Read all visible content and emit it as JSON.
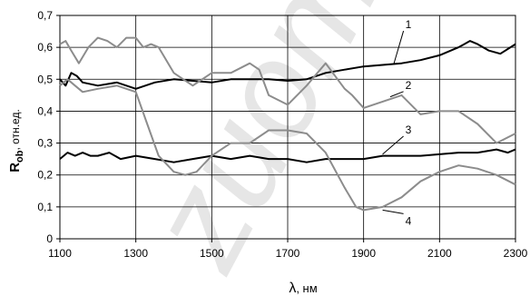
{
  "chart_data": {
    "type": "line",
    "xlabel": "λ",
    "xunit": ", нм",
    "ylabel_main": "R",
    "ylabel_sub": "ob",
    "ylabel_unit": ", отн.ед.",
    "xlim": [
      1100,
      2300
    ],
    "ylim": [
      0,
      0.7
    ],
    "xticks": [
      1100,
      1300,
      1500,
      1700,
      1900,
      2100,
      2300
    ],
    "xtick_labels": [
      "1100",
      "1300",
      "1500",
      "1700",
      "1900",
      "2100",
      "2300"
    ],
    "yticks": [
      0,
      0.1,
      0.2,
      0.3,
      0.4,
      0.5,
      0.6,
      0.7
    ],
    "ytick_labels": [
      "0",
      "0,1",
      "0,2",
      "0,3",
      "0,4",
      "0,5",
      "0,6",
      "0,7"
    ],
    "grid": true,
    "watermark": "zuome",
    "series": [
      {
        "name": "1",
        "color": "#000000",
        "x": [
          1100,
          1115,
          1130,
          1145,
          1160,
          1200,
          1250,
          1300,
          1350,
          1400,
          1450,
          1500,
          1550,
          1600,
          1650,
          1700,
          1750,
          1800,
          1850,
          1900,
          1950,
          2000,
          2050,
          2100,
          2150,
          2180,
          2200,
          2230,
          2260,
          2300
        ],
        "values": [
          0.5,
          0.48,
          0.52,
          0.51,
          0.49,
          0.48,
          0.49,
          0.47,
          0.49,
          0.5,
          0.495,
          0.49,
          0.5,
          0.5,
          0.5,
          0.495,
          0.5,
          0.52,
          0.53,
          0.54,
          0.545,
          0.55,
          0.56,
          0.575,
          0.6,
          0.62,
          0.61,
          0.59,
          0.58,
          0.61
        ]
      },
      {
        "name": "2",
        "color": "#8c8c8c",
        "x": [
          1100,
          1115,
          1130,
          1150,
          1175,
          1200,
          1225,
          1250,
          1275,
          1300,
          1320,
          1340,
          1360,
          1400,
          1450,
          1500,
          1550,
          1600,
          1625,
          1650,
          1700,
          1750,
          1800,
          1850,
          1870,
          1900,
          1950,
          2000,
          2050,
          2100,
          2150,
          2200,
          2250,
          2300
        ],
        "values": [
          0.61,
          0.62,
          0.59,
          0.55,
          0.6,
          0.63,
          0.62,
          0.6,
          0.63,
          0.63,
          0.6,
          0.61,
          0.6,
          0.52,
          0.48,
          0.52,
          0.52,
          0.55,
          0.53,
          0.45,
          0.42,
          0.48,
          0.55,
          0.47,
          0.45,
          0.41,
          0.43,
          0.45,
          0.39,
          0.4,
          0.4,
          0.36,
          0.3,
          0.33
        ]
      },
      {
        "name": "3",
        "color": "#000000",
        "x": [
          1100,
          1120,
          1140,
          1160,
          1180,
          1200,
          1230,
          1260,
          1300,
          1350,
          1400,
          1450,
          1500,
          1550,
          1600,
          1650,
          1700,
          1750,
          1800,
          1850,
          1900,
          1950,
          2000,
          2050,
          2100,
          2150,
          2200,
          2250,
          2280,
          2300
        ],
        "values": [
          0.25,
          0.27,
          0.26,
          0.27,
          0.26,
          0.26,
          0.27,
          0.25,
          0.26,
          0.25,
          0.24,
          0.25,
          0.26,
          0.25,
          0.26,
          0.25,
          0.25,
          0.24,
          0.25,
          0.25,
          0.25,
          0.26,
          0.26,
          0.26,
          0.265,
          0.27,
          0.27,
          0.28,
          0.27,
          0.28
        ]
      },
      {
        "name": "4",
        "color": "#8c8c8c",
        "x": [
          1100,
          1120,
          1140,
          1160,
          1200,
          1250,
          1300,
          1330,
          1360,
          1400,
          1430,
          1460,
          1500,
          1550,
          1600,
          1650,
          1700,
          1750,
          1800,
          1850,
          1880,
          1900,
          1950,
          2000,
          2050,
          2100,
          2150,
          2200,
          2250,
          2300
        ],
        "values": [
          0.48,
          0.5,
          0.48,
          0.46,
          0.47,
          0.48,
          0.46,
          0.36,
          0.26,
          0.21,
          0.2,
          0.21,
          0.26,
          0.3,
          0.3,
          0.34,
          0.34,
          0.33,
          0.27,
          0.16,
          0.1,
          0.09,
          0.1,
          0.13,
          0.18,
          0.21,
          0.23,
          0.22,
          0.2,
          0.17
        ]
      }
    ],
    "curve_labels": [
      {
        "text": "1",
        "x": 2005,
        "y": 0.66,
        "tx": 1980,
        "ty": 0.55
      },
      {
        "text": "2",
        "x": 2005,
        "y": 0.47,
        "tx": 1970,
        "ty": 0.445
      },
      {
        "text": "3",
        "x": 2005,
        "y": 0.33,
        "tx": 1950,
        "ty": 0.265
      },
      {
        "text": "4",
        "x": 2005,
        "y": 0.05,
        "tx": 1950,
        "ty": 0.09
      }
    ]
  }
}
